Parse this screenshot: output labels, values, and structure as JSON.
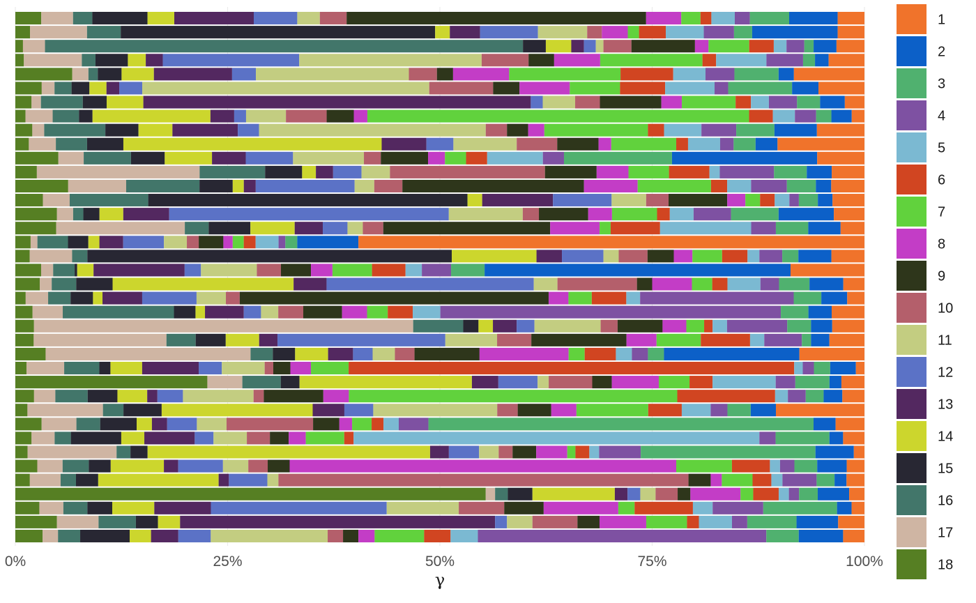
{
  "chart_data": {
    "type": "bar",
    "orientation": "horizontal",
    "stacked": true,
    "normalized": true,
    "xlabel": "γ",
    "ylabel": "",
    "xlim": [
      0,
      1
    ],
    "x_ticks": [
      {
        "value": 0,
        "label": "0%"
      },
      {
        "value": 0.25,
        "label": "25%"
      },
      {
        "value": 0.5,
        "label": "50%"
      },
      {
        "value": 0.75,
        "label": "75%"
      },
      {
        "value": 1,
        "label": "100%"
      }
    ],
    "grid": true,
    "legend_position": "right",
    "colors": {
      "18": "#567f23",
      "17": "#cfb5a3",
      "16": "#42766a",
      "15": "#282733",
      "14": "#ccd62d",
      "13": "#532860",
      "12": "#5b72c6",
      "11": "#c3cd81",
      "10": "#b45f6b",
      "9": "#2e361b",
      "8": "#c33dc6",
      "7": "#61d23d",
      "6": "#d14521",
      "5": "#7bb9d2",
      "4": "#7e51a2",
      "3": "#50b16f",
      "2": "#0c60c8",
      "1": "#f0732b"
    },
    "legend": [
      "1",
      "2",
      "3",
      "4",
      "5",
      "6",
      "7",
      "8",
      "9",
      "10",
      "11",
      "12",
      "13",
      "14",
      "15",
      "16",
      "17",
      "18"
    ],
    "stack_order": [
      "18",
      "17",
      "16",
      "15",
      "14",
      "13",
      "12",
      "11",
      "10",
      "9",
      "8",
      "7",
      "6",
      "5",
      "4",
      "3",
      "2",
      "1"
    ],
    "bars": [
      {
        "18": 3.1,
        "17": 3.8,
        "16": 2.3,
        "15": 6.6,
        "14": 3.2,
        "13": 9.5,
        "12": 5.2,
        "11": 2.7,
        "10": 3.2,
        "9": 35.8,
        "8": 4.2,
        "7": 2.3,
        "6": 1.3,
        "5": 2.8,
        "4": 1.8,
        "3": 4.7,
        "2": 5.8,
        "1": 3.2
      },
      {
        "18": 1.7,
        "17": 6.6,
        "16": 3.9,
        "15": 36.4,
        "14": 1.7,
        "13": 3.5,
        "12": 6.7,
        "11": 5.7,
        "10": 1.7,
        "9": 0,
        "8": 3.0,
        "7": 1.3,
        "6": 3.1,
        "5": 4.4,
        "4": 3.5,
        "3": 2.1,
        "2": 9.9,
        "1": 3.1
      },
      {
        "18": 0.9,
        "17": 2.6,
        "16": 56.4,
        "15": 2.7,
        "14": 3.0,
        "13": 1.5,
        "12": 1.4,
        "11": 0.9,
        "10": 3.3,
        "9": 7.5,
        "8": 1.6,
        "7": 4.8,
        "6": 2.9,
        "5": 1.5,
        "4": 2.1,
        "3": 1.1,
        "2": 2.7,
        "1": 3.3
      },
      {
        "18": 1.0,
        "17": 6.8,
        "16": 1.6,
        "15": 3.8,
        "14": 2.1,
        "13": 2.0,
        "12": 16.0,
        "11": 21.4,
        "10": 5.5,
        "9": 3.0,
        "8": 5.4,
        "7": 12.0,
        "6": 1.6,
        "5": 5.9,
        "4": 4.3,
        "3": 1.4,
        "2": 1.6,
        "1": 4.2
      },
      {
        "18": 6.7,
        "17": 1.9,
        "16": 1.1,
        "15": 2.8,
        "14": 3.8,
        "13": 9.2,
        "12": 2.8,
        "11": 18.0,
        "10": 3.3,
        "9": 1.9,
        "8": 6.6,
        "7": 13.1,
        "6": 6.2,
        "5": 3.8,
        "4": 3.4,
        "3": 5.2,
        "2": 1.8,
        "1": 8.3
      },
      {
        "18": 3.1,
        "17": 1.5,
        "16": 2.0,
        "15": 2.1,
        "14": 2.0,
        "13": 1.5,
        "12": 2.7,
        "11": 33.7,
        "10": 7.5,
        "9": 3.1,
        "8": 5.9,
        "7": 5.9,
        "6": 5.3,
        "5": 5.8,
        "4": 1.6,
        "3": 7.5,
        "2": 3.1,
        "1": 5.4
      },
      {
        "18": 1.9,
        "17": 1.1,
        "16": 4.9,
        "15": 2.8,
        "14": 4.3,
        "13": 45.4,
        "12": 1.4,
        "11": 3.8,
        "10": 2.9,
        "9": 7.2,
        "8": 2.4,
        "7": 6.3,
        "6": 1.8,
        "5": 2.1,
        "4": 3.3,
        "3": 2.7,
        "2": 2.9,
        "1": 2.3
      },
      {
        "18": 1.2,
        "17": 3.2,
        "16": 3.1,
        "15": 1.6,
        "14": 13.9,
        "13": 2.8,
        "12": 1.4,
        "11": 4.7,
        "10": 4.8,
        "9": 3.2,
        "8": 1.6,
        "7": 45.0,
        "6": 2.8,
        "5": 2.6,
        "4": 2.5,
        "3": 1.8,
        "2": 2.4,
        "1": 1.5
      },
      {
        "18": 2.0,
        "17": 1.4,
        "16": 7.2,
        "15": 3.9,
        "14": 4.0,
        "13": 7.7,
        "12": 2.5,
        "11": 26.7,
        "10": 2.5,
        "9": 2.5,
        "8": 1.9,
        "7": 12.2,
        "6": 1.9,
        "5": 4.4,
        "4": 4.1,
        "3": 4.5,
        "2": 5.0,
        "1": 5.6
      },
      {
        "18": 1.6,
        "17": 3.2,
        "16": 3.7,
        "15": 4.3,
        "14": 30.6,
        "13": 5.3,
        "12": 3.2,
        "11": 7.5,
        "10": 4.8,
        "9": 4.9,
        "8": 1.5,
        "7": 7.7,
        "6": 1.4,
        "5": 3.8,
        "4": 1.6,
        "3": 2.6,
        "2": 2.6,
        "1": 10.3
      },
      {
        "18": 5.1,
        "17": 3.0,
        "16": 5.6,
        "15": 4.0,
        "14": 5.6,
        "13": 4.0,
        "12": 5.6,
        "11": 8.4,
        "10": 2.0,
        "9": 5.6,
        "8": 2.0,
        "7": 2.5,
        "6": 2.5,
        "5": 6.6,
        "4": 2.5,
        "3": 12.8,
        "2": 17.2,
        "1": 5.6
      },
      {
        "18": 2.5,
        "17": 18.9,
        "16": 7.6,
        "15": 4.3,
        "14": 1.6,
        "13": 2.0,
        "12": 3.3,
        "11": 3.3,
        "10": 18.0,
        "9": 6.0,
        "8": 3.7,
        "7": 4.7,
        "6": 4.7,
        "5": 1.2,
        "4": 6.3,
        "3": 3.8,
        "2": 2.9,
        "1": 3.8
      },
      {
        "18": 6.2,
        "17": 6.8,
        "16": 8.6,
        "15": 3.9,
        "14": 1.3,
        "13": 1.4,
        "12": 11.6,
        "11": 2.3,
        "10": 3.3,
        "9": 21.3,
        "8": 6.3,
        "7": 8.6,
        "6": 1.9,
        "5": 2.8,
        "4": 4.2,
        "3": 3.4,
        "2": 1.8,
        "1": 3.9
      },
      {
        "18": 3.2,
        "17": 3.1,
        "16": 9.1,
        "15": 37.0,
        "14": 1.7,
        "13": 8.2,
        "12": 6.8,
        "11": 4.0,
        "10": 2.6,
        "9": 6.8,
        "8": 2.1,
        "7": 1.7,
        "6": 1.7,
        "5": 1.7,
        "4": 1.1,
        "3": 2.2,
        "2": 1.7,
        "1": 3.7
      },
      {
        "18": 4.9,
        "17": 1.9,
        "16": 1.2,
        "15": 1.9,
        "14": 2.8,
        "13": 5.4,
        "12": 32.9,
        "11": 8.7,
        "10": 1.9,
        "9": 5.8,
        "8": 2.8,
        "7": 5.3,
        "6": 1.5,
        "5": 2.8,
        "4": 4.4,
        "3": 5.6,
        "2": 6.5,
        "1": 3.6
      },
      {
        "18": 4.8,
        "17": 15.1,
        "16": 2.8,
        "15": 4.9,
        "14": 5.2,
        "13": 3.3,
        "12": 2.9,
        "11": 1.8,
        "10": 2.4,
        "9": 19.6,
        "8": 5.8,
        "7": 1.3,
        "6": 5.8,
        "5": 10.7,
        "4": 2.9,
        "3": 3.8,
        "2": 3.8,
        "1": 2.8
      },
      {
        "18": 1.8,
        "17": 0.8,
        "16": 3.6,
        "15": 2.4,
        "14": 1.3,
        "13": 2.8,
        "12": 4.8,
        "11": 2.7,
        "10": 1.4,
        "9": 2.9,
        "8": 1.1,
        "7": 1.3,
        "6": 1.4,
        "5": 2.7,
        "4": 0.8,
        "3": 1.4,
        "2": 7.2,
        "1": 59.6
      },
      {
        "18": 1.7,
        "17": 5.0,
        "16": 1.8,
        "15": 43.0,
        "14": 10.0,
        "13": 3.0,
        "12": 4.9,
        "11": 1.8,
        "10": 3.4,
        "9": 3.1,
        "8": 2.2,
        "7": 3.5,
        "6": 3.0,
        "5": 1.4,
        "4": 2.7,
        "3": 1.9,
        "2": 3.9,
        "1": 3.9
      },
      {
        "18": 3.0,
        "17": 1.4,
        "16": 2.5,
        "15": 0.3,
        "14": 1.9,
        "13": 10.6,
        "12": 1.9,
        "11": 6.5,
        "10": 2.8,
        "9": 3.5,
        "8": 2.5,
        "7": 4.6,
        "6": 3.9,
        "5": 1.9,
        "4": 3.4,
        "3": 3.9,
        "2": 35.6,
        "1": 8.6
      },
      {
        "18": 2.9,
        "17": 1.4,
        "16": 2.9,
        "15": 4.3,
        "14": 21.4,
        "13": 3.9,
        "12": 24.5,
        "11": 2.8,
        "10": 9.4,
        "9": 1.8,
        "8": 4.7,
        "7": 2.4,
        "6": 1.8,
        "5": 3.9,
        "4": 2.2,
        "3": 3.6,
        "2": 4.0,
        "1": 2.5
      },
      {
        "18": 1.2,
        "17": 2.6,
        "16": 2.6,
        "15": 2.6,
        "14": 1.1,
        "13": 4.6,
        "12": 6.3,
        "11": 3.4,
        "10": 1.6,
        "9": 35.8,
        "8": 2.3,
        "7": 2.7,
        "6": 4.0,
        "5": 1.6,
        "4": 17.8,
        "3": 3.2,
        "2": 3.0,
        "1": 2.0
      },
      {
        "18": 2.0,
        "17": 3.5,
        "16": 12.9,
        "15": 2.5,
        "14": 1.1,
        "13": 4.5,
        "12": 2.0,
        "11": 2.0,
        "10": 2.9,
        "9": 4.5,
        "8": 2.9,
        "7": 2.4,
        "6": 2.9,
        "5": 3.2,
        "4": 39.5,
        "3": 3.2,
        "2": 2.7,
        "1": 3.8
      },
      {
        "18": 2.2,
        "17": 44.7,
        "16": 5.9,
        "15": 1.8,
        "14": 1.7,
        "13": 2.8,
        "12": 2.1,
        "11": 7.8,
        "10": 2.0,
        "9": 5.3,
        "8": 2.8,
        "7": 2.1,
        "6": 1.0,
        "5": 1.7,
        "4": 7.1,
        "3": 2.8,
        "2": 2.5,
        "1": 3.8
      },
      {
        "18": 2.2,
        "17": 15.9,
        "16": 3.5,
        "15": 3.6,
        "14": 4.0,
        "13": 2.2,
        "12": 20.1,
        "11": 6.2,
        "10": 4.1,
        "9": 11.4,
        "8": 3.6,
        "7": 5.3,
        "6": 5.9,
        "5": 1.7,
        "4": 4.5,
        "3": 1.1,
        "2": 2.2,
        "1": 4.2
      },
      {
        "18": 3.4,
        "17": 23.0,
        "16": 2.5,
        "15": 2.5,
        "14": 3.7,
        "13": 2.8,
        "12": 2.2,
        "11": 2.5,
        "10": 2.2,
        "9": 7.3,
        "8": 10.0,
        "7": 1.8,
        "6": 3.5,
        "5": 1.8,
        "4": 1.8,
        "3": 1.8,
        "2": 15.2,
        "1": 7.3
      },
      {
        "18": 1.3,
        "17": 4.4,
        "16": 4.1,
        "15": 1.3,
        "14": 3.7,
        "13": 6.6,
        "12": 2.7,
        "11": 5.0,
        "10": 1.0,
        "9": 2.0,
        "8": 2.4,
        "7": 4.4,
        "6": 52.0,
        "5": 1.0,
        "4": 1.3,
        "3": 1.9,
        "2": 3.0,
        "1": 1.0
      },
      {
        "18": 22.5,
        "17": 4.1,
        "16": 4.5,
        "15": 2.2,
        "14": 20.2,
        "13": 3.1,
        "12": 4.6,
        "11": 1.3,
        "10": 5.1,
        "9": 2.3,
        "8": 5.5,
        "7": 3.6,
        "6": 2.7,
        "5": 7.4,
        "4": 2.3,
        "3": 4.0,
        "2": 1.4,
        "1": 2.7
      },
      {
        "18": 2.2,
        "17": 2.5,
        "16": 3.8,
        "15": 3.5,
        "14": 3.5,
        "13": 1.2,
        "12": 3.0,
        "11": 8.3,
        "10": 1.2,
        "9": 7.0,
        "8": 3.0,
        "7": 38.6,
        "6": 11.5,
        "5": 1.5,
        "4": 2.1,
        "3": 2.1,
        "2": 2.2,
        "1": 2.6
      },
      {
        "18": 1.3,
        "17": 8.1,
        "16": 2.2,
        "15": 4.1,
        "14": 16.2,
        "13": 3.4,
        "12": 3.1,
        "11": 13.3,
        "10": 2.2,
        "9": 3.6,
        "8": 2.7,
        "7": 7.7,
        "6": 3.6,
        "5": 3.1,
        "4": 1.8,
        "3": 2.5,
        "2": 2.7,
        "1": 9.5
      },
      {
        "18": 3.1,
        "17": 4.1,
        "16": 2.8,
        "15": 4.3,
        "14": 1.8,
        "13": 1.8,
        "12": 3.5,
        "11": 3.5,
        "10": 10.2,
        "9": 3.1,
        "8": 1.5,
        "7": 2.3,
        "6": 1.4,
        "5": 1.8,
        "4": 3.5,
        "3": 45.4,
        "2": 2.6,
        "1": 3.4
      },
      {
        "18": 1.9,
        "17": 2.7,
        "16": 1.9,
        "15": 5.9,
        "14": 2.7,
        "13": 5.9,
        "12": 2.2,
        "11": 3.9,
        "10": 2.7,
        "9": 2.2,
        "8": 2.0,
        "7": 4.5,
        "6": 1.1,
        "5": 47.5,
        "4": 1.9,
        "3": 6.3,
        "2": 1.6,
        "1": 2.5
      },
      {
        "18": 1.5,
        "17": 10.9,
        "16": 1.7,
        "15": 2.1,
        "14": 34.6,
        "13": 2.3,
        "12": 3.7,
        "11": 2.4,
        "10": 1.7,
        "9": 2.9,
        "8": 3.8,
        "7": 1.0,
        "6": 1.7,
        "5": 1.2,
        "4": 5.1,
        "3": 21.4,
        "2": 4.7,
        "1": 1.3
      },
      {
        "18": 2.6,
        "17": 3.0,
        "16": 3.1,
        "15": 2.6,
        "14": 6.3,
        "13": 1.7,
        "12": 5.3,
        "11": 3.0,
        "10": 2.3,
        "9": 2.6,
        "8": 45.8,
        "7": 6.6,
        "6": 4.5,
        "5": 1.2,
        "4": 1.7,
        "3": 2.7,
        "2": 3.5,
        "1": 2.1
      },
      {
        "18": 1.7,
        "17": 3.6,
        "16": 1.8,
        "15": 2.6,
        "14": 14.1,
        "13": 1.2,
        "12": 4.5,
        "11": 1.3,
        "10": 48.0,
        "9": 2.6,
        "8": 1.3,
        "7": 3.6,
        "6": 2.2,
        "5": 1.3,
        "4": 4.0,
        "3": 2.1,
        "2": 1.4,
        "1": 2.1
      },
      {
        "18": 55.4,
        "17": 1.1,
        "16": 1.5,
        "15": 2.9,
        "14": 9.7,
        "13": 1.5,
        "12": 1.5,
        "11": 1.8,
        "10": 2.6,
        "9": 1.5,
        "8": 5.9,
        "7": 1.5,
        "6": 3.0,
        "5": 1.2,
        "4": 1.2,
        "3": 2.2,
        "2": 3.7,
        "1": 1.8
      },
      {
        "18": 2.8,
        "17": 2.8,
        "16": 2.8,
        "15": 2.9,
        "14": 4.9,
        "13": 6.6,
        "12": 20.5,
        "11": 8.4,
        "10": 5.3,
        "9": 4.6,
        "8": 8.7,
        "7": 1.9,
        "6": 6.8,
        "5": 2.3,
        "4": 5.9,
        "3": 8.6,
        "2": 1.7,
        "1": 1.5
      },
      {
        "18": 4.9,
        "17": 4.9,
        "16": 4.4,
        "15": 2.6,
        "14": 2.6,
        "13": 37.1,
        "12": 1.4,
        "11": 3.0,
        "10": 5.3,
        "9": 2.6,
        "8": 5.5,
        "7": 4.8,
        "6": 1.4,
        "5": 3.9,
        "4": 1.8,
        "3": 5.8,
        "2": 4.9,
        "1": 3.1
      },
      {
        "18": 3.2,
        "17": 1.8,
        "16": 2.6,
        "15": 5.8,
        "14": 2.5,
        "13": 3.2,
        "12": 3.8,
        "11": 13.7,
        "10": 1.8,
        "9": 1.8,
        "8": 1.9,
        "7": 5.8,
        "6": 3.1,
        "5": 3.2,
        "4": 33.8,
        "3": 3.8,
        "2": 5.2,
        "1": 2.5
      }
    ]
  }
}
